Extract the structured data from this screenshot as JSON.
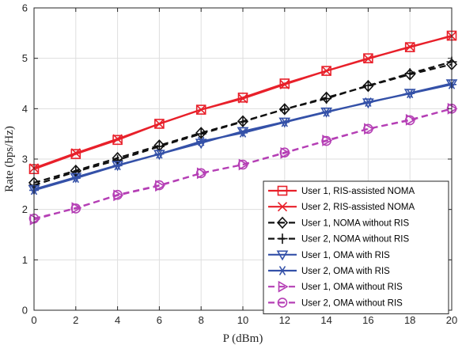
{
  "chart_data": {
    "type": "line",
    "xlabel": "P (dBm)",
    "ylabel": "Rate (bps/Hz)",
    "xlim": [
      0,
      20
    ],
    "ylim": [
      0,
      6
    ],
    "x_ticks": [
      "0",
      "2",
      "4",
      "6",
      "8",
      "10",
      "12",
      "14",
      "16",
      "18",
      "20"
    ],
    "y_ticks": [
      "0",
      "1",
      "2",
      "3",
      "4",
      "5",
      "6"
    ],
    "grid": true,
    "legend_position": "bottom-right",
    "x": [
      0,
      2,
      4,
      6,
      8,
      10,
      12,
      14,
      16,
      18,
      20
    ],
    "series": [
      {
        "name": "User 1, RIS-assisted NOMA",
        "color": "#e8202a",
        "dash": "solid",
        "marker": "square",
        "values": [
          2.8,
          3.1,
          3.38,
          3.7,
          3.98,
          4.22,
          4.5,
          4.75,
          5.0,
          5.22,
          5.45
        ]
      },
      {
        "name": "User 2, RIS-assisted NOMA",
        "color": "#e8202a",
        "dash": "solid",
        "marker": "x",
        "values": [
          2.82,
          3.12,
          3.4,
          3.7,
          3.98,
          4.2,
          4.48,
          4.75,
          4.99,
          5.23,
          5.44
        ]
      },
      {
        "name": "User 1, NOMA without RIS",
        "color": "#111111",
        "dash": "dashed",
        "marker": "diamond",
        "values": [
          2.53,
          2.77,
          3.02,
          3.27,
          3.52,
          3.75,
          3.99,
          4.22,
          4.45,
          4.68,
          4.88
        ]
      },
      {
        "name": "User 2, NOMA without RIS",
        "color": "#111111",
        "dash": "dashed",
        "marker": "plus",
        "values": [
          2.48,
          2.75,
          2.98,
          3.25,
          3.5,
          3.74,
          3.99,
          4.2,
          4.46,
          4.7,
          4.93
        ]
      },
      {
        "name": "User 1, OMA with RIS",
        "color": "#3451a8",
        "dash": "solid",
        "marker": "triangle-down",
        "values": [
          2.4,
          2.64,
          2.88,
          3.1,
          3.32,
          3.55,
          3.74,
          3.94,
          4.12,
          4.31,
          4.5
        ]
      },
      {
        "name": "User 2, OMA with RIS",
        "color": "#3451a8",
        "dash": "solid",
        "marker": "asterisk",
        "values": [
          2.38,
          2.62,
          2.87,
          3.1,
          3.35,
          3.52,
          3.73,
          3.93,
          4.13,
          4.3,
          4.48
        ]
      },
      {
        "name": "User 1, OMA without RIS",
        "color": "#b53fb5",
        "dash": "dashed",
        "marker": "triangle-right",
        "values": [
          1.8,
          2.03,
          2.28,
          2.47,
          2.72,
          2.89,
          3.12,
          3.37,
          3.6,
          3.78,
          4.0
        ]
      },
      {
        "name": "User 2, OMA without RIS",
        "color": "#b53fb5",
        "dash": "dashed",
        "marker": "circle",
        "values": [
          1.82,
          2.02,
          2.29,
          2.48,
          2.72,
          2.89,
          3.13,
          3.36,
          3.6,
          3.77,
          4.0
        ]
      }
    ]
  }
}
